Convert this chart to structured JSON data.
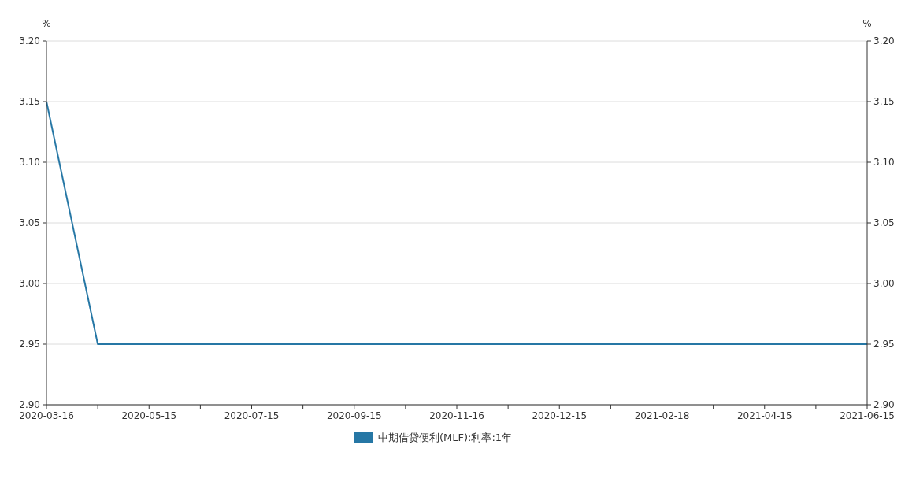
{
  "chart_data": {
    "type": "line",
    "categories": [
      "2020-03-16",
      null,
      "2020-05-15",
      null,
      "2020-07-15",
      null,
      "2020-09-15",
      null,
      "2020-11-16",
      null,
      "2020-12-15",
      null,
      "2021-02-18",
      null,
      "2021-04-15",
      null,
      "2021-06-15"
    ],
    "series": [
      {
        "name": "中期借贷便利(MLF):利率:1年",
        "color": "#2677a5",
        "values": [
          3.15,
          2.95,
          2.95,
          2.95,
          2.95,
          2.95,
          2.95,
          2.95,
          2.95,
          2.95,
          2.95,
          2.95,
          2.95,
          2.95,
          2.95,
          2.95,
          2.95
        ]
      }
    ],
    "ylabel": "%",
    "y2label": "%",
    "ylim": [
      2.9,
      3.2
    ],
    "yticks": [
      {
        "value": 2.9,
        "label": "2.90"
      },
      {
        "value": 2.95,
        "label": "2.95"
      },
      {
        "value": 3.0,
        "label": "3.00"
      },
      {
        "value": 3.05,
        "label": "3.05"
      },
      {
        "value": 3.1,
        "label": "3.10"
      },
      {
        "value": 3.15,
        "label": "3.15"
      },
      {
        "value": 3.2,
        "label": "3.20"
      }
    ],
    "y2lim": [
      2.9,
      3.2
    ],
    "y2ticks": [
      {
        "value": 2.9,
        "label": "2.90"
      },
      {
        "value": 2.95,
        "label": "2.95"
      },
      {
        "value": 3.0,
        "label": "3.00"
      },
      {
        "value": 3.05,
        "label": "3.05"
      },
      {
        "value": 3.1,
        "label": "3.10"
      },
      {
        "value": 3.15,
        "label": "3.15"
      },
      {
        "value": 3.2,
        "label": "3.20"
      }
    ],
    "grid": "y",
    "legend": "bottom"
  }
}
